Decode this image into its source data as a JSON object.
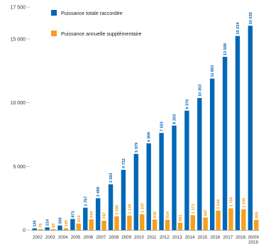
{
  "colors": {
    "total": "#0068b8",
    "annual": "#f5a01e",
    "grid": "#d9d9d9",
    "axis": "#999999"
  },
  "chart_data": {
    "type": "bar",
    "title": "",
    "xlabel": "",
    "ylabel": "",
    "ylim": [
      0,
      17500
    ],
    "yticks": [
      0,
      5000,
      10000,
      15000,
      17500
    ],
    "ytick_labels": [
      "0",
      "5 000",
      "10 000",
      "15 000",
      "17 500"
    ],
    "grid": false,
    "legend_position": "top-left",
    "categories": [
      "2002",
      "2003",
      "2004",
      "2005",
      "2006",
      "2007",
      "2008",
      "2009",
      "2010",
      "2011",
      "2012",
      "2013",
      "2014",
      "2015",
      "2016",
      "2017",
      "2018",
      "30/09 2019"
    ],
    "series": [
      {
        "name": "Puissance totale raccordée",
        "values": [
          136,
          214,
          359,
          873,
          1757,
          2499,
          3593,
          4732,
          5979,
          6809,
          7623,
          8203,
          9376,
          10363,
          11893,
          13599,
          15234,
          16039
        ],
        "labels": [
          "136",
          "214",
          "359",
          "873",
          "1 757",
          "2 499",
          "3 593",
          "4 732",
          "5 979",
          "6 809",
          "7 623",
          "8 203",
          "9 376",
          "10 363",
          "11 893",
          "13 599",
          "15 234",
          "16 039"
        ]
      },
      {
        "name": "Puissance annuelle supplémentaire",
        "values": [
          76,
          80,
          145,
          514,
          844,
          742,
          1086,
          1139,
          1247,
          830,
          814,
          581,
          1173,
          987,
          1530,
          1706,
          1635,
          805
        ],
        "labels": [
          "76",
          "80",
          "145",
          "514",
          "844",
          "742",
          "1 086",
          "1 139",
          "1 247",
          "830",
          "814",
          "581",
          "1 173",
          "987",
          "1 530",
          "1 706",
          "1 635",
          "805"
        ]
      }
    ]
  }
}
